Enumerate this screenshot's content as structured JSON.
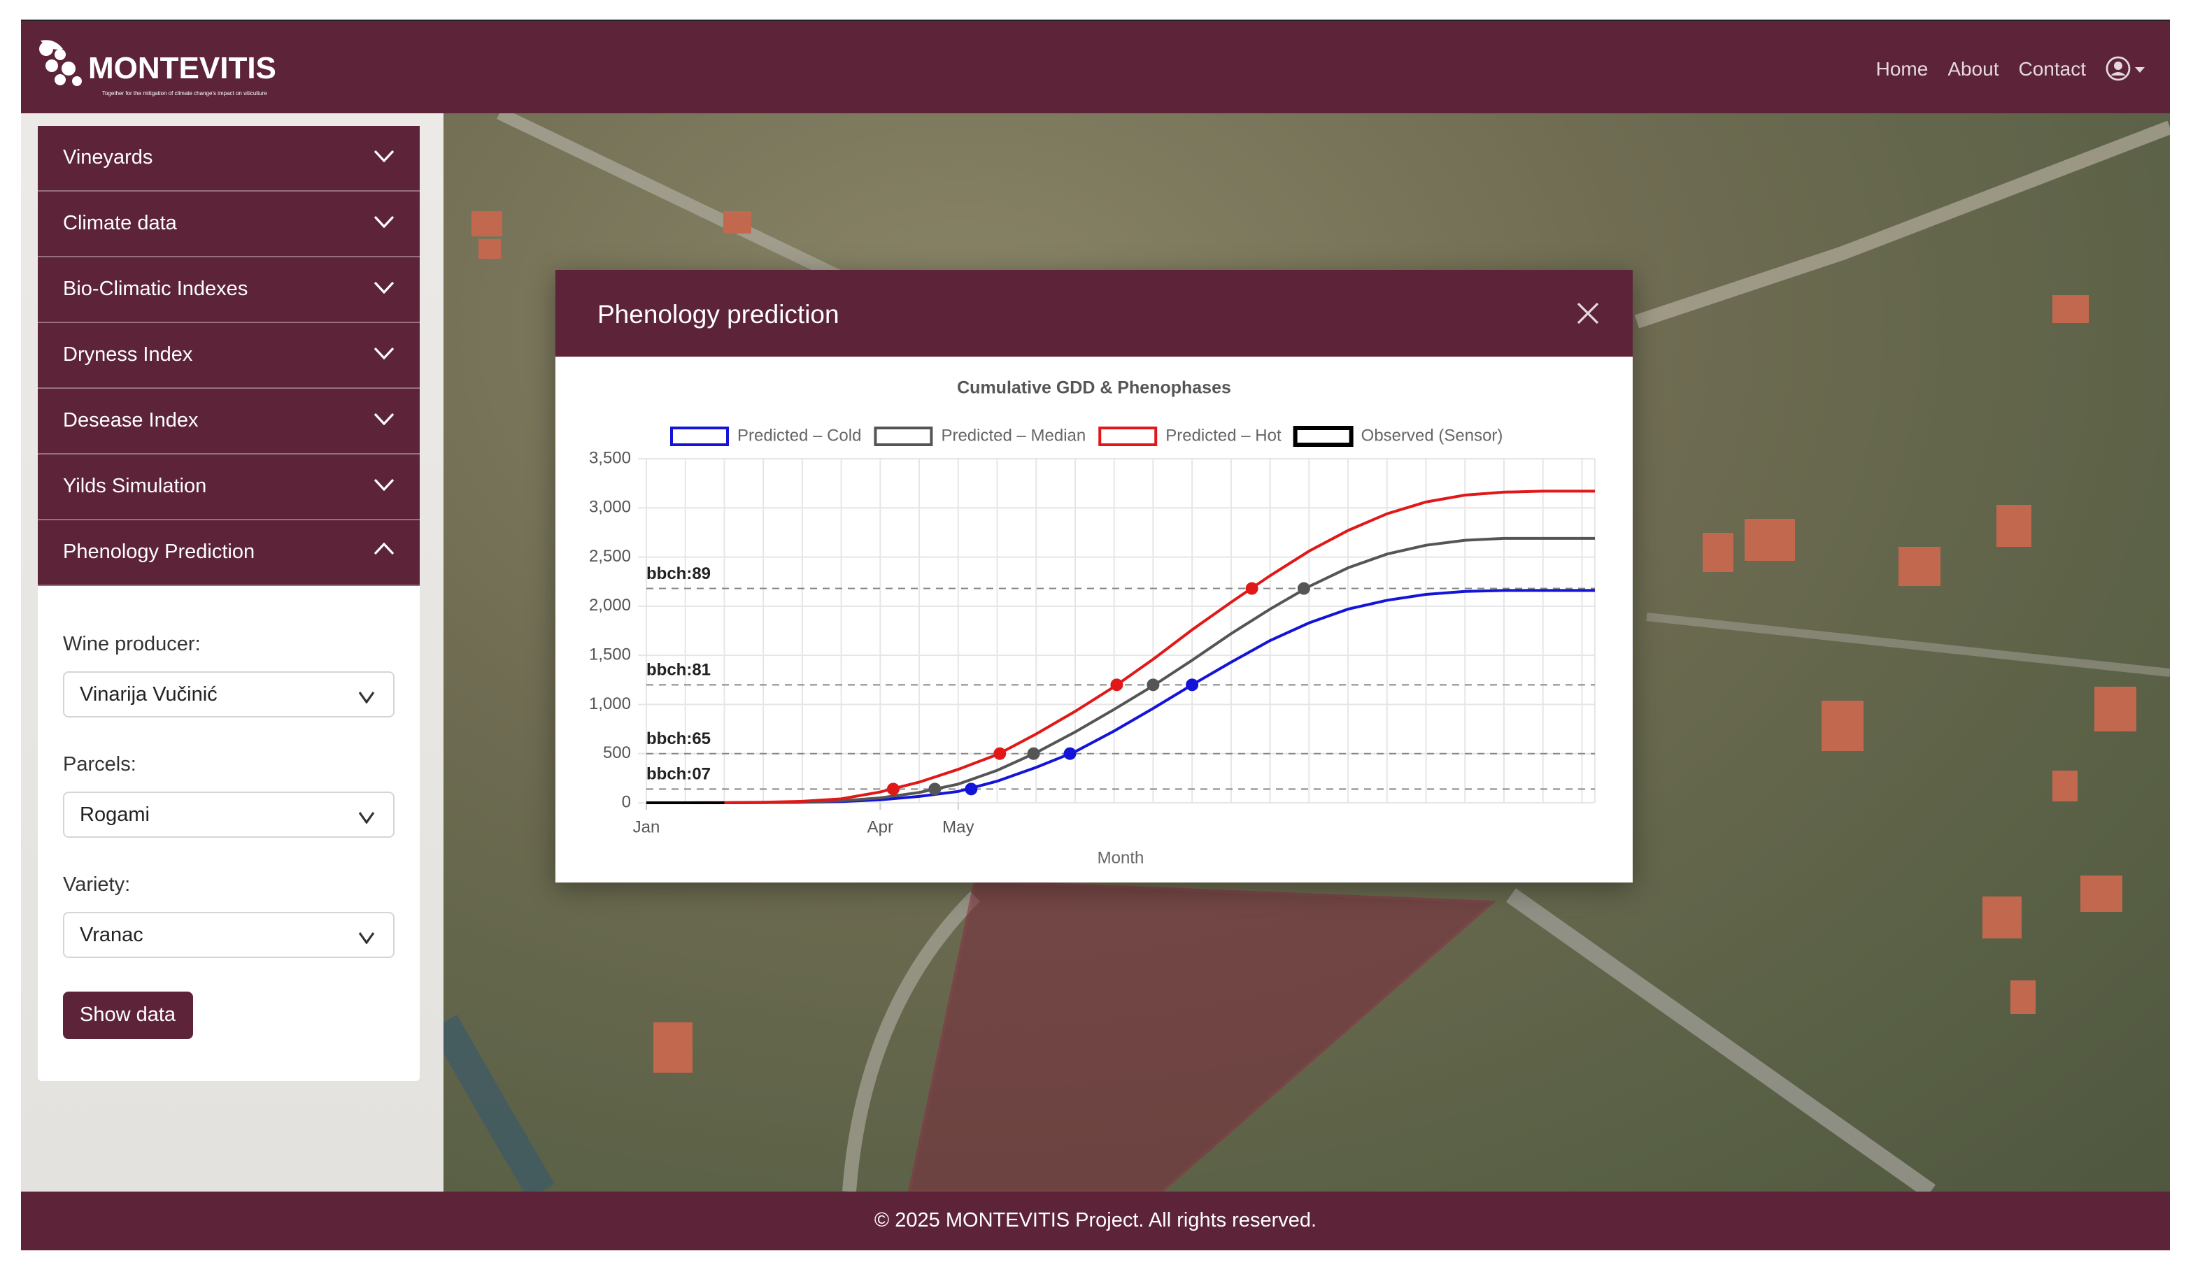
{
  "header": {
    "logo": "MONTEVITIS",
    "tagline": "Together for the mitigation of climate change's impact on viticulture",
    "nav": [
      "Home",
      "About",
      "Contact"
    ]
  },
  "sidebar": {
    "sections": [
      "Vineyards",
      "Climate data",
      "Bio-Climatic Indexes",
      "Dryness Index",
      "Desease Index",
      "Yilds Simulation",
      "Phenology Prediction"
    ],
    "form": {
      "fields": [
        {
          "label": "Wine producer:",
          "value": "Vinarija Vučinić"
        },
        {
          "label": "Parcels:",
          "value": "Rogami"
        },
        {
          "label": "Variety:",
          "value": "Vranac"
        }
      ],
      "button": "Show data"
    }
  },
  "modal": {
    "title": "Phenology prediction"
  },
  "chart_data": {
    "type": "line",
    "title": "Cumulative GDD & Phenophases",
    "x_label": "Month",
    "x": [
      0,
      15,
      30,
      45,
      60,
      75,
      90,
      105,
      120,
      135,
      150,
      165,
      180,
      195,
      210,
      225,
      240,
      255,
      270,
      285,
      300,
      315,
      330,
      345,
      360,
      365
    ],
    "xlim": [
      0,
      365
    ],
    "xticks": [
      {
        "value": 0,
        "label": "Jan"
      },
      {
        "value": 90,
        "label": "Apr"
      },
      {
        "value": 120,
        "label": "May"
      }
    ],
    "ylim": [
      0,
      3500
    ],
    "yticks": [
      0,
      500,
      {
        "value": 1000,
        "label": "1,000"
      },
      {
        "value": 1500,
        "label": "1,500"
      },
      {
        "value": 2000,
        "label": "2,000"
      },
      {
        "value": 2500,
        "label": "2,500"
      },
      {
        "value": 3000,
        "label": "3,000"
      },
      {
        "value": 3500,
        "label": "3,500"
      }
    ],
    "grid": true,
    "phenophases": [
      {
        "label": "bbch:07",
        "value": 140
      },
      {
        "label": "bbch:65",
        "value": 500
      },
      {
        "label": "bbch:81",
        "value": 1200
      },
      {
        "label": "bbch:89",
        "value": 2180
      }
    ],
    "series": [
      {
        "name": "Predicted – Cold",
        "color": "#1414d8",
        "values": [
          0,
          0,
          0,
          2,
          5,
          12,
          30,
          65,
          115,
          220,
          360,
          520,
          730,
          960,
          1200,
          1430,
          1650,
          1830,
          1970,
          2060,
          2120,
          2150,
          2160,
          2160,
          2160,
          2160
        ],
        "phase_x": [
          125,
          163,
          210,
          null
        ]
      },
      {
        "name": "Predicted – Median",
        "color": "#555555",
        "values": [
          0,
          0,
          0,
          3,
          8,
          20,
          50,
          105,
          190,
          330,
          510,
          720,
          950,
          1190,
          1450,
          1720,
          1970,
          2200,
          2390,
          2530,
          2620,
          2670,
          2690,
          2690,
          2690,
          2690
        ],
        "phase_x": [
          111,
          149,
          195,
          253
        ]
      },
      {
        "name": "Predicted – Hot",
        "color": "#e01818",
        "values": [
          0,
          0,
          2,
          5,
          15,
          40,
          110,
          210,
          340,
          490,
          700,
          930,
          1180,
          1460,
          1760,
          2040,
          2310,
          2560,
          2770,
          2940,
          3060,
          3130,
          3160,
          3170,
          3170,
          3170
        ],
        "phase_x": [
          95,
          136,
          181,
          233
        ]
      },
      {
        "name": "Observed (Sensor)",
        "color": "#000000",
        "values": [
          0,
          0,
          0,
          null,
          null,
          null,
          null,
          null,
          null,
          null,
          null,
          null,
          null,
          null,
          null,
          null,
          null,
          null,
          null,
          null,
          null,
          null,
          null,
          null,
          null,
          null
        ]
      }
    ]
  },
  "footer": {
    "text": "© 2025 MONTEVITIS Project. All rights reserved."
  }
}
